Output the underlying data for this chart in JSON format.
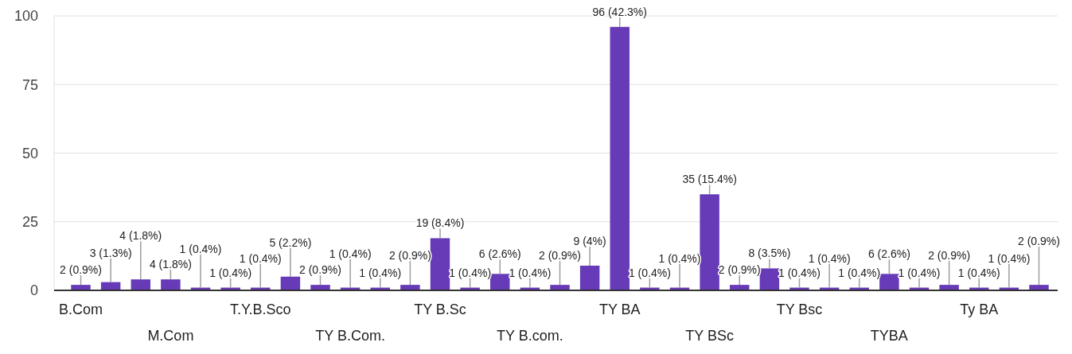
{
  "chart_data": {
    "type": "bar",
    "categories": [
      "B.Com",
      null,
      null,
      "M.Com",
      null,
      null,
      "T.Y.B.Sco",
      null,
      null,
      "TY B.Com.",
      null,
      null,
      "TY B.Sc",
      null,
      null,
      "TY B.com.",
      null,
      null,
      "TY BA",
      null,
      null,
      "TY BSc",
      null,
      null,
      "TY Bsc",
      null,
      null,
      "TYBA",
      null,
      null,
      "Ty BA",
      null,
      null
    ],
    "values": [
      2,
      3,
      4,
      4,
      1,
      1,
      1,
      5,
      2,
      1,
      1,
      2,
      19,
      1,
      6,
      1,
      2,
      9,
      96,
      1,
      1,
      35,
      2,
      8,
      1,
      1,
      1,
      6,
      1,
      2,
      1,
      1,
      2
    ],
    "value_labels": [
      "2 (0.9%)",
      "3 (1.3%)",
      "4 (1.8%)",
      "4 (1.8%)",
      "1 (0.4%)",
      "1 (0.4%)",
      "1 (0.4%)",
      "5 (2.2%)",
      "2 (0.9%)",
      "1 (0.4%)",
      "1 (0.4%)",
      "2 (0.9%)",
      "19 (8.4%)",
      "1 (0.4%)",
      "6 (2.6%)",
      "1 (0.4%)",
      "2 (0.9%)",
      "9 (4%)",
      "96 (42.3%)",
      "1 (0.4%)",
      "1 (0.4%)",
      "35 (15.4%)",
      "2 (0.9%)",
      "8 (3.5%)",
      "1 (0.4%)",
      "1 (0.4%)",
      "1 (0.4%)",
      "6 (2.6%)",
      "1 (0.4%)",
      "2 (0.9%)",
      "1 (0.4%)",
      "1 (0.4%)",
      "2 (0.9%)"
    ],
    "color": "#673ab7",
    "ylim": [
      0,
      100
    ],
    "yticks": [
      0,
      25,
      50,
      75,
      100
    ],
    "grid": "y"
  }
}
